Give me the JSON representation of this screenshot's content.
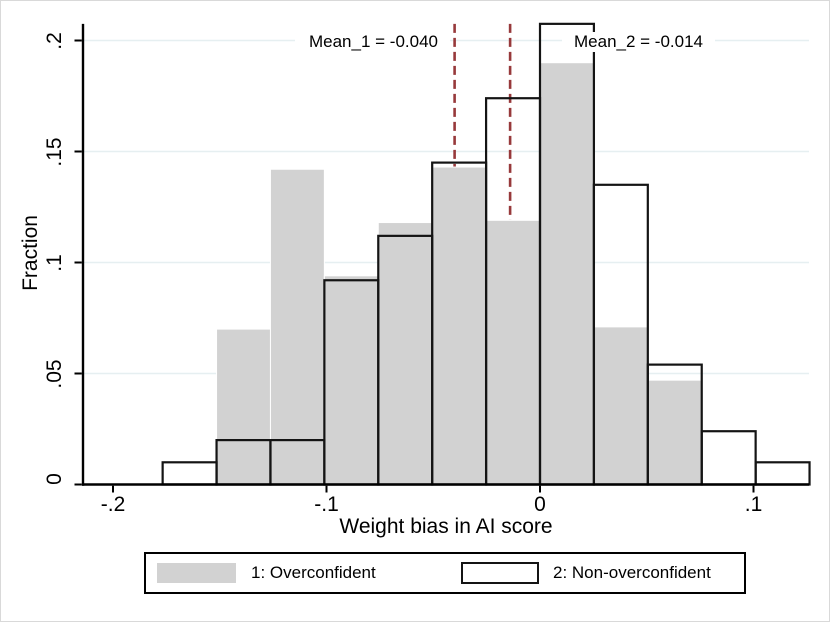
{
  "figure": {
    "background": "#ffffff",
    "border_color": "#d9d9d9"
  },
  "y_axis": {
    "title": "Fraction",
    "tick_labels": [
      "0",
      ".05",
      ".1",
      ".15",
      ".2"
    ],
    "tick_values": [
      0,
      0.05,
      0.1,
      0.15,
      0.2
    ],
    "max": 0.2075
  },
  "x_axis": {
    "title": "Weight bias in AI score",
    "tick_labels": [
      "-.2",
      "-.1",
      "0",
      ".1"
    ],
    "tick_values": [
      -0.2,
      -0.1,
      0,
      0.1
    ],
    "min": -0.214,
    "max": 0.1262
  },
  "annotations": {
    "mean_1": "Mean_1 = -0.040",
    "mean_2": "Mean_2 = -0.014"
  },
  "legend": {
    "items": [
      {
        "label": "1: Overconfident",
        "swatch": "gray-filled"
      },
      {
        "label": "2: Non-overconfident",
        "swatch": "white-black-outline"
      }
    ]
  },
  "colors": {
    "bar_fill": "#d2d2d2",
    "bar_fill_outline": "#ffffff",
    "bar_outline": "#141414",
    "mean_line": "#97393b",
    "gridline": "#e6eff1",
    "axis": "#000000",
    "text": "#000000"
  },
  "chart_data": {
    "type": "bar",
    "subtype": "overlaid-histogram",
    "title": "",
    "xlabel": "Weight bias in AI score",
    "ylabel": "Fraction",
    "xlim": [
      -0.214,
      0.1262
    ],
    "ylim": [
      0,
      0.2075
    ],
    "grid": "horizontal",
    "legend_position": "bottom",
    "bin_start": -0.17675,
    "bin_width": 0.02525,
    "bin_edges": [
      -0.17675,
      -0.1515,
      -0.12625,
      -0.101,
      -0.07575,
      -0.0505,
      -0.02525,
      0,
      0.02525,
      0.0505,
      0.07575,
      0.101,
      0.12625
    ],
    "series": [
      {
        "name": "1: Overconfident",
        "style": "filled-gray",
        "values": [
          0,
          0.07,
          0.142,
          0.094,
          0.118,
          0.143,
          0.119,
          0.19,
          0.071,
          0.047,
          0,
          0
        ]
      },
      {
        "name": "2: Non-overconfident",
        "style": "transparent-black-outline",
        "values": [
          0.01,
          0.02,
          0.02,
          0.092,
          0.112,
          0.145,
          0.174,
          0.2075,
          0.135,
          0.054,
          0.024,
          0.01
        ]
      }
    ],
    "mean_lines": [
      {
        "label": "Mean_1 = -0.040",
        "x": -0.04
      },
      {
        "label": "Mean_2 = -0.014",
        "x": -0.014
      }
    ]
  }
}
